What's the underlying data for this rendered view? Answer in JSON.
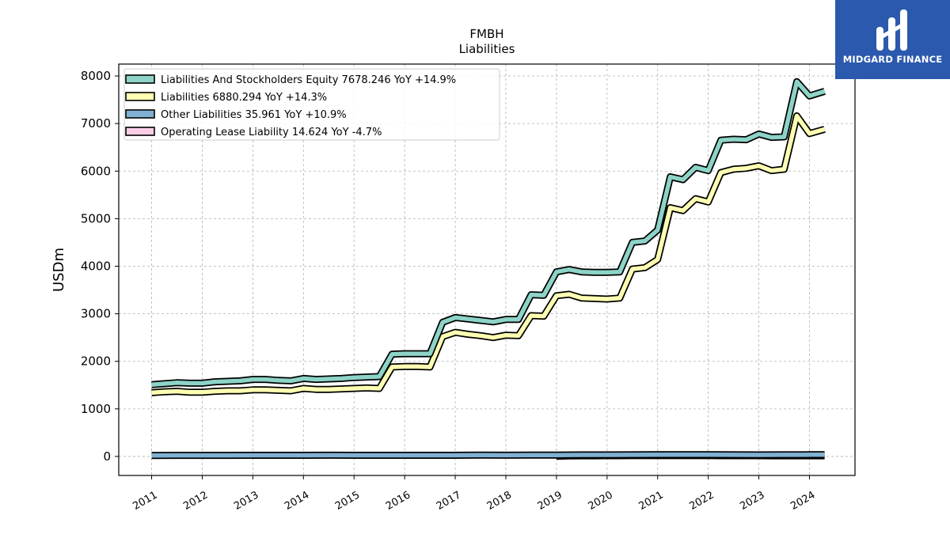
{
  "chart_data": {
    "type": "line",
    "title": "FMBH",
    "subtitle": "Liabilities",
    "ylabel": "USDm",
    "xlabel": "",
    "ylim": [
      -400,
      8250
    ],
    "xlim": [
      2010.35,
      2024.9
    ],
    "yticks": [
      0,
      1000,
      2000,
      3000,
      4000,
      5000,
      6000,
      7000,
      8000
    ],
    "xticks": [
      "2011",
      "2012",
      "2013",
      "2014",
      "2015",
      "2016",
      "2017",
      "2018",
      "2019",
      "2020",
      "2021",
      "2022",
      "2023",
      "2024"
    ],
    "grid": true,
    "legend_position": "top-left",
    "series": [
      {
        "name": "Liabilities And Stockholders Equity",
        "legend": "Liabilities And Stockholders Equity  7678.246 YoY +14.9%",
        "color": "#8dd3c7",
        "x": [
          2011.0,
          2011.25,
          2011.5,
          2011.75,
          2012.0,
          2012.25,
          2012.5,
          2012.75,
          2013.0,
          2013.25,
          2013.5,
          2013.75,
          2014.0,
          2014.25,
          2014.5,
          2014.75,
          2015.0,
          2015.25,
          2015.5,
          2015.75,
          2016.0,
          2016.25,
          2016.5,
          2016.75,
          2017.0,
          2017.25,
          2017.5,
          2017.75,
          2018.0,
          2018.25,
          2018.5,
          2018.75,
          2019.0,
          2019.25,
          2019.5,
          2019.75,
          2020.0,
          2020.25,
          2020.5,
          2020.75,
          2021.0,
          2021.25,
          2021.5,
          2021.75,
          2022.0,
          2022.25,
          2022.5,
          2022.75,
          2023.0,
          2023.25,
          2023.5,
          2023.75,
          2024.0,
          2024.3
        ],
        "values": [
          1510,
          1530,
          1550,
          1540,
          1540,
          1570,
          1580,
          1590,
          1620,
          1620,
          1600,
          1590,
          1640,
          1620,
          1630,
          1640,
          1660,
          1670,
          1680,
          2150,
          2160,
          2160,
          2160,
          2820,
          2920,
          2890,
          2860,
          2830,
          2880,
          2880,
          3400,
          3390,
          3880,
          3930,
          3880,
          3870,
          3870,
          3880,
          4500,
          4530,
          4760,
          5880,
          5820,
          6080,
          6010,
          6650,
          6670,
          6660,
          6780,
          6710,
          6720,
          7880,
          7580,
          7678
        ]
      },
      {
        "name": "Liabilities",
        "legend": "Liabilities  6880.294 YoY +14.3%",
        "color": "#ffffb3",
        "x": [
          2011.0,
          2011.25,
          2011.5,
          2011.75,
          2012.0,
          2012.25,
          2012.5,
          2012.75,
          2013.0,
          2013.25,
          2013.5,
          2013.75,
          2014.0,
          2014.25,
          2014.5,
          2014.75,
          2015.0,
          2015.25,
          2015.5,
          2015.75,
          2016.0,
          2016.25,
          2016.5,
          2016.75,
          2017.0,
          2017.25,
          2017.5,
          2017.75,
          2018.0,
          2018.25,
          2018.5,
          2018.75,
          2019.0,
          2019.25,
          2019.5,
          2019.75,
          2020.0,
          2020.25,
          2020.5,
          2020.75,
          2021.0,
          2021.25,
          2021.5,
          2021.75,
          2022.0,
          2022.25,
          2022.5,
          2022.75,
          2023.0,
          2023.25,
          2023.5,
          2023.75,
          2024.0,
          2024.3
        ],
        "values": [
          1340,
          1360,
          1370,
          1350,
          1350,
          1370,
          1380,
          1380,
          1400,
          1400,
          1390,
          1380,
          1430,
          1410,
          1410,
          1420,
          1430,
          1440,
          1430,
          1880,
          1890,
          1890,
          1880,
          2520,
          2610,
          2570,
          2540,
          2500,
          2550,
          2540,
          2960,
          2950,
          3380,
          3410,
          3330,
          3320,
          3310,
          3330,
          3940,
          3970,
          4140,
          5230,
          5170,
          5420,
          5350,
          5970,
          6040,
          6060,
          6110,
          6010,
          6040,
          7160,
          6790,
          6880
        ]
      },
      {
        "name": "Other Liabilities",
        "legend": "Other Liabilities  35.961 YoY +10.9%",
        "color": "#80b1d3",
        "x": [
          2011.0,
          2011.5,
          2012.0,
          2012.5,
          2013.0,
          2013.5,
          2014.0,
          2014.5,
          2015.0,
          2015.5,
          2016.0,
          2016.5,
          2017.0,
          2017.5,
          2018.0,
          2018.5,
          2019.0,
          2019.5,
          2020.0,
          2020.5,
          2021.0,
          2021.5,
          2022.0,
          2022.5,
          2023.0,
          2023.5,
          2024.0,
          2024.3
        ],
        "values": [
          20,
          22,
          23,
          22,
          24,
          24,
          25,
          26,
          25,
          24,
          24,
          25,
          25,
          27,
          26,
          28,
          30,
          32,
          33,
          34,
          36,
          37,
          35,
          34,
          33,
          34,
          36,
          36
        ]
      },
      {
        "name": "Operating Lease Liability",
        "legend": "Operating Lease Liability  14.624 YoY -4.7%",
        "color": "#fccde5",
        "x": [
          2019.0,
          2019.25,
          2019.5,
          2019.75,
          2020.0,
          2020.25,
          2020.5,
          2020.75,
          2021.0,
          2021.25,
          2021.5,
          2021.75,
          2022.0,
          2022.25,
          2022.5,
          2022.75,
          2023.0,
          2023.25,
          2023.5,
          2023.75,
          2024.0,
          2024.3
        ],
        "values": [
          5,
          12,
          14,
          15,
          16,
          16,
          17,
          17,
          17,
          18,
          18,
          18,
          17,
          16,
          16,
          16,
          16,
          15,
          15,
          15,
          15,
          15
        ]
      }
    ]
  },
  "brand": {
    "name": "MIDGARD FINANCE",
    "color": "#2b59ad"
  }
}
